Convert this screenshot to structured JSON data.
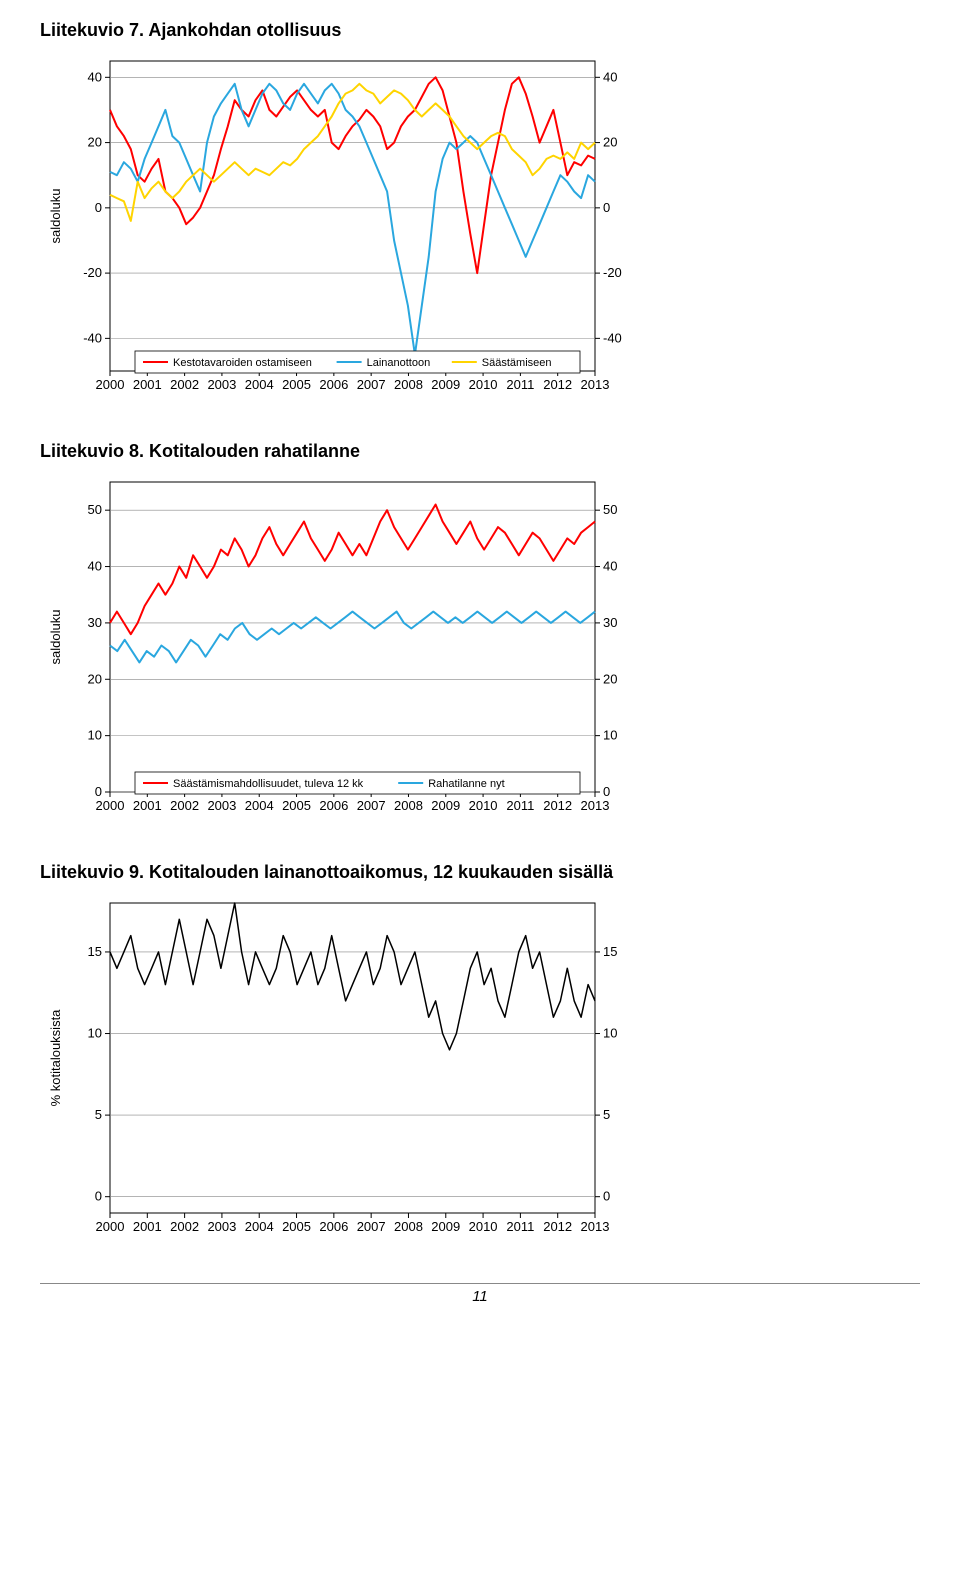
{
  "page_number": "11",
  "chart7": {
    "title": "Liitekuvio 7. Ajankohdan otollisuus",
    "type": "line",
    "ylabel": "saldoluku",
    "yticks": [
      -40,
      -20,
      0,
      20,
      40
    ],
    "xticks": [
      "2000",
      "2001",
      "2002",
      "2003",
      "2004",
      "2005",
      "2006",
      "2007",
      "2008",
      "2009",
      "2010",
      "2011",
      "2012",
      "2013"
    ],
    "ymin": -50,
    "ymax": 45,
    "series": [
      {
        "name": "Kestotavaroiden ostamiseen",
        "color": "#ff0000",
        "width": 2,
        "data": [
          30,
          25,
          22,
          18,
          10,
          8,
          12,
          15,
          5,
          3,
          0,
          -5,
          -3,
          0,
          5,
          10,
          18,
          25,
          33,
          30,
          28,
          33,
          36,
          30,
          28,
          31,
          34,
          36,
          33,
          30,
          28,
          30,
          20,
          18,
          22,
          25,
          27,
          30,
          28,
          25,
          18,
          20,
          25,
          28,
          30,
          34,
          38,
          40,
          36,
          28,
          20,
          5,
          -8,
          -20,
          -5,
          10,
          20,
          30,
          38,
          40,
          35,
          28,
          20,
          25,
          30,
          20,
          10,
          14,
          13,
          16,
          15
        ]
      },
      {
        "name": "Lainanottoon",
        "color": "#2aa7df",
        "width": 2,
        "data": [
          11,
          10,
          14,
          12,
          8,
          15,
          20,
          25,
          30,
          22,
          20,
          15,
          10,
          5,
          20,
          28,
          32,
          35,
          38,
          30,
          25,
          30,
          35,
          38,
          36,
          32,
          30,
          35,
          38,
          35,
          32,
          36,
          38,
          35,
          30,
          28,
          25,
          20,
          15,
          10,
          5,
          -10,
          -20,
          -30,
          -45,
          -30,
          -15,
          5,
          15,
          20,
          18,
          20,
          22,
          20,
          15,
          10,
          5,
          0,
          -5,
          -10,
          -15,
          -10,
          -5,
          0,
          5,
          10,
          8,
          5,
          3,
          10,
          8
        ]
      },
      {
        "name": "Säästämiseen",
        "color": "#ffd400",
        "width": 2,
        "data": [
          4,
          3,
          2,
          -4,
          8,
          3,
          6,
          8,
          5,
          3,
          5,
          8,
          10,
          12,
          10,
          8,
          10,
          12,
          14,
          12,
          10,
          12,
          11,
          10,
          12,
          14,
          13,
          15,
          18,
          20,
          22,
          25,
          28,
          32,
          35,
          36,
          38,
          36,
          35,
          32,
          34,
          36,
          35,
          33,
          30,
          28,
          30,
          32,
          30,
          28,
          25,
          22,
          20,
          18,
          20,
          22,
          23,
          22,
          18,
          16,
          14,
          10,
          12,
          15,
          16,
          15,
          17,
          15,
          20,
          18,
          20
        ]
      }
    ]
  },
  "chart8": {
    "title": "Liitekuvio 8. Kotitalouden rahatilanne",
    "type": "line",
    "ylabel": "saldoluku",
    "yticks": [
      0,
      10,
      20,
      30,
      40,
      50
    ],
    "xticks": [
      "2000",
      "2001",
      "2002",
      "2003",
      "2004",
      "2005",
      "2006",
      "2007",
      "2008",
      "2009",
      "2010",
      "2011",
      "2012",
      "2013"
    ],
    "ymin": 0,
    "ymax": 55,
    "series": [
      {
        "name": "Säästämismahdollisuudet, tuleva 12 kk",
        "color": "#ff0000",
        "width": 2,
        "data": [
          30,
          32,
          30,
          28,
          30,
          33,
          35,
          37,
          35,
          37,
          40,
          38,
          42,
          40,
          38,
          40,
          43,
          42,
          45,
          43,
          40,
          42,
          45,
          47,
          44,
          42,
          44,
          46,
          48,
          45,
          43,
          41,
          43,
          46,
          44,
          42,
          44,
          42,
          45,
          48,
          50,
          47,
          45,
          43,
          45,
          47,
          49,
          51,
          48,
          46,
          44,
          46,
          48,
          45,
          43,
          45,
          47,
          46,
          44,
          42,
          44,
          46,
          45,
          43,
          41,
          43,
          45,
          44,
          46,
          47,
          48
        ]
      },
      {
        "name": "Rahatilanne nyt",
        "color": "#2aa7df",
        "width": 2,
        "data": [
          26,
          25,
          27,
          25,
          23,
          25,
          24,
          26,
          25,
          23,
          25,
          27,
          26,
          24,
          26,
          28,
          27,
          29,
          30,
          28,
          27,
          28,
          29,
          28,
          29,
          30,
          29,
          30,
          31,
          30,
          29,
          30,
          31,
          32,
          31,
          30,
          29,
          30,
          31,
          32,
          30,
          29,
          30,
          31,
          32,
          31,
          30,
          31,
          30,
          31,
          32,
          31,
          30,
          31,
          32,
          31,
          30,
          31,
          32,
          31,
          30,
          31,
          32,
          31,
          30,
          31,
          32
        ]
      }
    ]
  },
  "chart9": {
    "title": "Liitekuvio 9. Kotitalouden lainanottoaikomus, 12 kuukauden sisällä",
    "type": "line",
    "ylabel": "% kotitalouksista",
    "yticks": [
      0,
      5,
      10,
      15
    ],
    "xticks": [
      "2000",
      "2001",
      "2002",
      "2003",
      "2004",
      "2005",
      "2006",
      "2007",
      "2008",
      "2009",
      "2010",
      "2011",
      "2012",
      "2013"
    ],
    "ymin": -1,
    "ymax": 18,
    "series": [
      {
        "name": "",
        "color": "#000000",
        "width": 1.5,
        "data": [
          15,
          14,
          15,
          16,
          14,
          13,
          14,
          15,
          13,
          15,
          17,
          15,
          13,
          15,
          17,
          16,
          14,
          16,
          18,
          15,
          13,
          15,
          14,
          13,
          14,
          16,
          15,
          13,
          14,
          15,
          13,
          14,
          16,
          14,
          12,
          13,
          14,
          15,
          13,
          14,
          16,
          15,
          13,
          14,
          15,
          13,
          11,
          12,
          10,
          9,
          10,
          12,
          14,
          15,
          13,
          14,
          12,
          11,
          13,
          15,
          16,
          14,
          15,
          13,
          11,
          12,
          14,
          12,
          11,
          13,
          12
        ]
      }
    ]
  }
}
